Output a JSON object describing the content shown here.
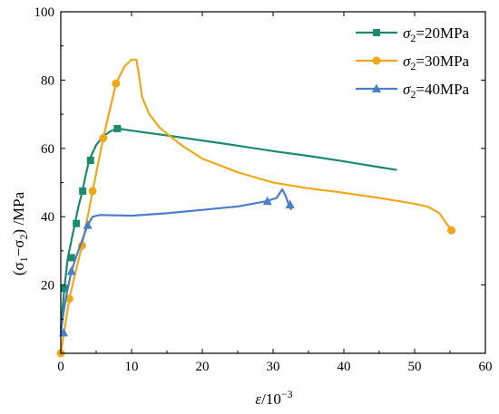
{
  "chart_data": {
    "type": "line",
    "xlabel_symbol": "ε",
    "xlabel_unit": "/10",
    "xlabel_exp": "−3",
    "ylabel_main": "(σ",
    "ylabel_sub1": "1",
    "ylabel_mid": "−σ",
    "ylabel_sub2": "2",
    "ylabel_end": ") /MPa",
    "xlim": [
      0,
      60
    ],
    "ylim": [
      0,
      100
    ],
    "xticks": [
      "0",
      "10",
      "20",
      "30",
      "40",
      "50",
      "60"
    ],
    "yticks": [
      "20",
      "40",
      "60",
      "80",
      "100"
    ],
    "legend_position": "top-right",
    "series": [
      {
        "name_sym": "σ",
        "name_sub": "2",
        "name_val": "=20MPa",
        "color": "#1a8c6c",
        "marker": "square",
        "x": [
          0,
          0.5,
          1.0,
          1.5,
          2.0,
          2.5,
          3.0,
          3.5,
          4.0,
          5.0,
          6.0,
          7.0,
          8.0,
          10,
          15,
          20,
          25,
          30,
          35,
          40,
          45,
          47.5
        ],
        "y": [
          7,
          19,
          28,
          33,
          38,
          43,
          47,
          52,
          56.5,
          61,
          63.5,
          65,
          65.8,
          65.2,
          63.8,
          62.3,
          60.8,
          59.2,
          57.8,
          56.2,
          54.5,
          53.7
        ],
        "markers_x": [
          0.5,
          1.5,
          2.2,
          3.1,
          4.2,
          8.0
        ],
        "markers_y": [
          19,
          28,
          38,
          47.5,
          56.5,
          65.8
        ]
      },
      {
        "name_sym": "σ",
        "name_sub": "2",
        "name_val": "=30MPa",
        "color": "#f0a818",
        "marker": "circle",
        "x": [
          0,
          1.2,
          2.0,
          3.0,
          4.5,
          6.0,
          7.8,
          9.0,
          10.0,
          10.7,
          11.0,
          11.5,
          12.5,
          14,
          17,
          20,
          25,
          30,
          35,
          40,
          45,
          50,
          52,
          53.5,
          54.5,
          55.2
        ],
        "y": [
          0,
          16,
          23,
          31.5,
          47.5,
          63,
          79,
          84,
          86,
          86,
          82,
          75,
          70,
          66,
          61,
          57,
          53,
          50,
          48.3,
          47,
          45.5,
          43.8,
          42.8,
          41,
          38,
          36
        ],
        "markers_x": [
          0,
          1.2,
          3.0,
          4.5,
          6.0,
          7.8,
          55.2
        ],
        "markers_y": [
          0,
          16,
          31.5,
          47.5,
          63,
          79,
          36
        ]
      },
      {
        "name_sym": "σ",
        "name_sub": "2",
        "name_val": "=40MPa",
        "color": "#4a7ec9",
        "marker": "triangle",
        "x": [
          0,
          0.4,
          0.8,
          1.5,
          2.3,
          3.0,
          3.8,
          4.5,
          5.5,
          10,
          15,
          20,
          25,
          29,
          30.5,
          31.3,
          31.8,
          32.3,
          32.6
        ],
        "y": [
          6,
          12,
          17,
          24,
          29,
          33,
          37.5,
          40,
          40.5,
          40.3,
          41,
          42,
          43,
          44.5,
          45.5,
          48,
          46,
          43,
          42
        ],
        "markers_x": [
          0.4,
          1.5,
          3.8,
          29.2,
          32.4
        ],
        "markers_y": [
          6,
          24,
          37.5,
          44.5,
          43.5
        ]
      }
    ]
  }
}
